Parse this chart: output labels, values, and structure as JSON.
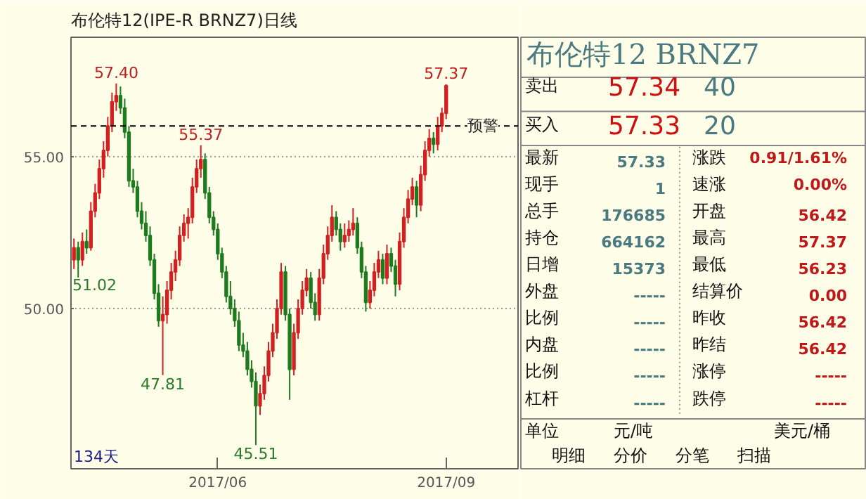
{
  "chart_data": [
    {
      "type": "candlestick",
      "title": "布伦特12(IPE-R BRNZ7)日线",
      "categories": [
        null,
        null,
        null,
        null,
        null,
        null,
        null,
        null,
        null,
        null,
        null,
        null,
        null,
        null,
        null,
        null,
        null,
        null,
        null,
        null,
        null,
        null,
        null,
        null,
        null,
        null,
        null,
        null,
        null,
        null,
        null,
        null,
        null,
        null,
        "2017/06",
        null,
        null,
        null,
        null,
        null,
        null,
        null,
        null,
        null,
        null,
        null,
        null,
        null,
        null,
        null,
        null,
        null,
        null,
        null,
        null,
        null,
        null,
        null,
        null,
        null,
        null,
        null,
        null,
        null,
        null,
        null,
        null,
        null,
        null,
        null,
        null,
        null,
        null,
        null,
        null,
        null,
        null,
        null,
        null,
        null,
        null,
        null,
        null,
        null,
        null,
        null,
        null,
        null,
        "2017/09"
      ],
      "ohlc": [
        [
          51.6,
          52.3,
          51.3,
          52.0
        ],
        [
          52.0,
          52.2,
          51.02,
          51.6
        ],
        [
          51.6,
          52.5,
          51.4,
          52.2
        ],
        [
          52.2,
          52.6,
          51.8,
          52.0
        ],
        [
          52.0,
          53.5,
          51.9,
          53.2
        ],
        [
          53.2,
          54.1,
          53.0,
          53.8
        ],
        [
          53.8,
          54.9,
          53.6,
          54.6
        ],
        [
          54.6,
          55.5,
          54.3,
          55.2
        ],
        [
          55.2,
          56.3,
          55.0,
          56.0
        ],
        [
          56.0,
          57.1,
          55.8,
          56.8
        ],
        [
          56.8,
          57.4,
          56.5,
          57.0
        ],
        [
          57.0,
          57.3,
          56.4,
          56.6
        ],
        [
          56.6,
          56.9,
          55.6,
          55.8
        ],
        [
          55.8,
          56.0,
          54.0,
          54.2
        ],
        [
          54.2,
          54.6,
          53.8,
          54.0
        ],
        [
          54.0,
          54.2,
          53.0,
          53.2
        ],
        [
          53.2,
          53.5,
          52.6,
          52.8
        ],
        [
          52.8,
          53.2,
          52.2,
          52.4
        ],
        [
          52.4,
          52.7,
          51.4,
          51.6
        ],
        [
          51.6,
          51.8,
          50.3,
          50.5
        ],
        [
          50.5,
          50.8,
          49.4,
          49.6
        ],
        [
          49.6,
          50.4,
          47.81,
          49.8
        ],
        [
          49.8,
          50.9,
          49.5,
          50.6
        ],
        [
          50.6,
          51.5,
          50.3,
          51.2
        ],
        [
          51.2,
          51.9,
          50.9,
          51.6
        ],
        [
          51.6,
          52.7,
          51.4,
          52.4
        ],
        [
          52.4,
          53.1,
          52.2,
          52.8
        ],
        [
          52.8,
          53.3,
          52.3,
          53.0
        ],
        [
          53.0,
          54.3,
          52.8,
          54.0
        ],
        [
          54.0,
          54.9,
          53.8,
          54.6
        ],
        [
          54.6,
          55.37,
          54.3,
          54.9
        ],
        [
          54.9,
          55.1,
          53.6,
          53.8
        ],
        [
          53.8,
          54.0,
          52.8,
          53.0
        ],
        [
          53.0,
          53.2,
          52.4,
          52.6
        ],
        [
          52.6,
          52.8,
          51.6,
          51.8
        ],
        [
          51.8,
          52.0,
          51.0,
          51.2
        ],
        [
          51.2,
          51.4,
          50.2,
          50.4
        ],
        [
          50.4,
          50.9,
          49.8,
          50.0
        ],
        [
          50.0,
          50.3,
          49.4,
          49.6
        ],
        [
          49.6,
          49.9,
          48.6,
          48.8
        ],
        [
          48.8,
          49.2,
          48.4,
          48.6
        ],
        [
          48.6,
          48.9,
          47.8,
          48.0
        ],
        [
          48.0,
          48.3,
          47.4,
          47.6
        ],
        [
          47.6,
          47.9,
          45.51,
          46.8
        ],
        [
          46.8,
          47.5,
          46.5,
          47.2
        ],
        [
          47.2,
          48.1,
          47.0,
          47.8
        ],
        [
          47.8,
          48.9,
          47.6,
          48.6
        ],
        [
          48.6,
          49.5,
          48.4,
          49.2
        ],
        [
          49.2,
          50.3,
          49.0,
          50.0
        ],
        [
          50.0,
          51.5,
          49.8,
          51.2
        ],
        [
          51.2,
          51.4,
          49.6,
          49.8
        ],
        [
          49.8,
          50.0,
          47.0,
          48.0
        ],
        [
          48.0,
          49.5,
          47.8,
          49.2
        ],
        [
          49.2,
          50.3,
          49.0,
          50.0
        ],
        [
          50.0,
          50.9,
          49.8,
          50.6
        ],
        [
          50.6,
          51.3,
          50.4,
          51.0
        ],
        [
          51.0,
          51.2,
          50.0,
          50.2
        ],
        [
          50.2,
          50.5,
          49.6,
          49.8
        ],
        [
          49.8,
          51.3,
          49.6,
          51.0
        ],
        [
          51.0,
          52.1,
          50.8,
          51.8
        ],
        [
          51.8,
          52.7,
          51.6,
          52.4
        ],
        [
          52.4,
          53.4,
          52.2,
          53.0
        ],
        [
          53.0,
          53.2,
          52.4,
          52.6
        ],
        [
          52.6,
          52.8,
          51.9,
          52.2
        ],
        [
          52.2,
          52.8,
          52.0,
          52.4
        ],
        [
          52.4,
          52.9,
          52.2,
          52.6
        ],
        [
          52.6,
          53.3,
          52.4,
          52.8
        ],
        [
          52.8,
          53.0,
          51.8,
          52.0
        ],
        [
          52.0,
          52.2,
          51.0,
          51.2
        ],
        [
          51.2,
          51.4,
          49.9,
          50.2
        ],
        [
          50.2,
          50.9,
          50.0,
          50.6
        ],
        [
          50.6,
          51.5,
          50.4,
          51.2
        ],
        [
          51.2,
          51.9,
          51.0,
          51.6
        ],
        [
          51.6,
          51.8,
          50.8,
          51.0
        ],
        [
          51.0,
          52.1,
          50.8,
          51.8
        ],
        [
          51.8,
          52.0,
          51.2,
          51.4
        ],
        [
          51.4,
          51.6,
          50.4,
          50.8
        ],
        [
          50.8,
          52.5,
          50.6,
          52.2
        ],
        [
          52.2,
          53.3,
          52.0,
          53.0
        ],
        [
          53.0,
          53.9,
          52.8,
          53.6
        ],
        [
          53.6,
          54.3,
          53.4,
          54.0
        ],
        [
          54.0,
          54.2,
          53.0,
          53.4
        ],
        [
          53.4,
          54.7,
          53.2,
          54.4
        ],
        [
          54.4,
          55.5,
          54.2,
          55.2
        ],
        [
          55.2,
          55.9,
          55.0,
          55.6
        ],
        [
          55.6,
          55.8,
          55.1,
          55.4
        ],
        [
          55.4,
          56.3,
          55.2,
          56.0
        ],
        [
          56.0,
          56.6,
          55.8,
          56.42
        ],
        [
          56.42,
          57.37,
          56.23,
          57.33
        ]
      ],
      "colors": [
        "#d42020",
        "#1e7b1e",
        "#d42020",
        "#1e7b1e",
        "#d42020",
        "#d42020",
        "#d42020",
        "#d42020",
        "#d42020",
        "#d42020",
        "#d42020",
        "#1e7b1e",
        "#1e7b1e",
        "#1e7b1e",
        "#1e7b1e",
        "#1e7b1e",
        "#1e7b1e",
        "#1e7b1e",
        "#1e7b1e",
        "#1e7b1e",
        "#1e7b1e",
        "#d42020",
        "#d42020",
        "#d42020",
        "#d42020",
        "#d42020",
        "#d42020",
        "#d42020",
        "#d42020",
        "#d42020",
        "#d42020",
        "#1e7b1e",
        "#1e7b1e",
        "#1e7b1e",
        "#1e7b1e",
        "#1e7b1e",
        "#1e7b1e",
        "#1e7b1e",
        "#1e7b1e",
        "#1e7b1e",
        "#1e7b1e",
        "#1e7b1e",
        "#1e7b1e",
        "#1e7b1e",
        "#d42020",
        "#d42020",
        "#d42020",
        "#d42020",
        "#d42020",
        "#d42020",
        "#1e7b1e",
        "#1e7b1e",
        "#d42020",
        "#d42020",
        "#d42020",
        "#d42020",
        "#1e7b1e",
        "#1e7b1e",
        "#d42020",
        "#d42020",
        "#d42020",
        "#d42020",
        "#1e7b1e",
        "#1e7b1e",
        "#d42020",
        "#d42020",
        "#d42020",
        "#1e7b1e",
        "#1e7b1e",
        "#1e7b1e",
        "#d42020",
        "#d42020",
        "#d42020",
        "#1e7b1e",
        "#d42020",
        "#1e7b1e",
        "#1e7b1e",
        "#d42020",
        "#d42020",
        "#d42020",
        "#d42020",
        "#1e7b1e",
        "#d42020",
        "#d42020",
        "#d42020",
        "#1e7b1e",
        "#d42020",
        "#d42020",
        "#d42020"
      ],
      "ylim": [
        44.73,
        58.92
      ],
      "yticks": [
        {
          "value": 50,
          "label": "50.00"
        },
        {
          "value": 55,
          "label": "55.00"
        }
      ],
      "grid": "y",
      "ref_lines": [
        {
          "axis": "y",
          "value": 56.0,
          "label": "预警",
          "color": "#000000",
          "line_style": "dashed"
        }
      ],
      "annotations": [
        "134天",
        {
          "text": "57.40",
          "y": 57.4
        },
        "51.02",
        {
          "text": "47.81",
          "y": 47.81
        },
        {
          "text": "55.37",
          "y": 55.37
        },
        {
          "text": "45.51",
          "y": 45.51
        },
        {
          "text": "57.37",
          "y": 57.37
        }
      ]
    },
    {
      "type": "other",
      "title": "布伦特12  BRNZ7",
      "annotations": [
        "卖出",
        "57.34",
        "40",
        "买入",
        "57.33",
        "20",
        "最新",
        "57.33",
        "涨跌",
        "0.91/1.61%",
        "现手",
        "1",
        "速涨",
        "0.00%",
        "总手",
        "176685",
        "开盘",
        "56.42",
        "持仓",
        "664162",
        "最高",
        "57.37",
        "日增",
        "15373",
        "最低",
        "56.23",
        "外盘",
        "-----",
        "结算价",
        "0.00",
        "比例",
        "-----",
        "昨收",
        "56.42",
        "内盘",
        "-----",
        "昨结",
        "56.42",
        "比例",
        "-----",
        "涨停",
        "-----",
        "杠杆",
        "-----",
        "跌停",
        "-----",
        "单位",
        "元/吨",
        "美元/桶",
        "明细",
        "分价",
        "分笔",
        "扫描"
      ]
    }
  ]
}
